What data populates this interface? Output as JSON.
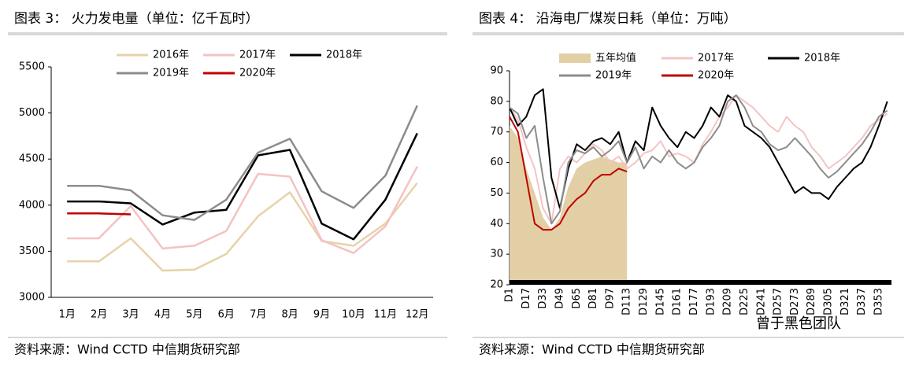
{
  "chart_data": [
    {
      "type": "line",
      "title": "图表 3：  火力发电量（单位：亿千瓦时）",
      "source": "资料来源：Wind CCTD 中信期货研究部",
      "categories": [
        "1月",
        "2月",
        "3月",
        "4月",
        "5月",
        "6月",
        "7月",
        "8月",
        "9月",
        "10月",
        "11月",
        "12月"
      ],
      "series": [
        {
          "name": "2016年",
          "color": "#e6d3a8",
          "values": [
            3390,
            3390,
            3640,
            3290,
            3300,
            3470,
            3880,
            4140,
            3610,
            3560,
            3800,
            4240
          ]
        },
        {
          "name": "2017年",
          "color": "#f4c2c2",
          "values": [
            3640,
            3640,
            3990,
            3530,
            3560,
            3720,
            4340,
            4310,
            3620,
            3480,
            3770,
            4420
          ]
        },
        {
          "name": "2018年",
          "color": "#000000",
          "values": [
            4040,
            4040,
            4020,
            3790,
            3920,
            3950,
            4540,
            4600,
            3800,
            3630,
            4060,
            4780
          ]
        },
        {
          "name": "2019年",
          "color": "#8c8c8c",
          "values": [
            4210,
            4210,
            4160,
            3890,
            3840,
            4060,
            4570,
            4720,
            4150,
            3970,
            4320,
            5080
          ]
        },
        {
          "name": "2020年",
          "color": "#c00000",
          "values": [
            3910,
            3910,
            3900,
            null,
            null,
            null,
            null,
            null,
            null,
            null,
            null,
            null
          ]
        }
      ],
      "ylim": [
        3000,
        5500
      ],
      "yticks": [
        3000,
        3500,
        4000,
        4500,
        5000,
        5500
      ]
    },
    {
      "type": "line",
      "title": "图表 4：  沿海电厂煤炭日耗（单位：万吨）",
      "source": "资料来源：Wind CCTD 中信期货研究部",
      "categories": [
        "D1",
        null,
        "D17",
        null,
        "D33",
        null,
        "D49",
        null,
        "D65",
        null,
        "D81",
        null,
        "D97",
        null,
        "D113",
        null,
        "D129",
        null,
        "D145",
        null,
        "D161",
        null,
        "D177",
        null,
        "D193",
        null,
        "D209",
        null,
        "D225",
        null,
        "D241",
        null,
        "D257",
        null,
        "D273",
        null,
        "D289",
        null,
        "D305",
        null,
        "D321",
        null,
        "D337",
        null,
        "D353",
        null
      ],
      "series": [
        {
          "name": "五年均值",
          "type": "area",
          "color": "#e3cfa5",
          "values": [
            72,
            68,
            58,
            50,
            42,
            38,
            42,
            52,
            58,
            60,
            61,
            62,
            61,
            60,
            60,
            null,
            null,
            null,
            null,
            null,
            null,
            null,
            null,
            null,
            null,
            null,
            null,
            null,
            null,
            null,
            null,
            null,
            null,
            null,
            null,
            null,
            null,
            null,
            null,
            null,
            null,
            null,
            null,
            null,
            null,
            null
          ]
        },
        {
          "name": "2017年",
          "color": "#f5c4c4",
          "values": [
            78,
            74,
            65,
            58,
            45,
            40,
            58,
            62,
            60,
            63,
            66,
            64,
            60,
            62,
            58,
            60,
            63,
            64,
            67,
            62,
            63,
            62,
            60,
            66,
            70,
            75,
            78,
            82,
            80,
            78,
            75,
            72,
            70,
            75,
            72,
            70,
            65,
            62,
            58,
            60,
            62,
            65,
            68,
            72,
            74,
            76
          ]
        },
        {
          "name": "2018年",
          "color": "#000000",
          "values": [
            78,
            72,
            75,
            82,
            84,
            55,
            45,
            58,
            66,
            64,
            67,
            68,
            66,
            70,
            60,
            67,
            64,
            78,
            72,
            68,
            65,
            70,
            68,
            72,
            78,
            75,
            82,
            80,
            72,
            70,
            68,
            65,
            60,
            55,
            50,
            52,
            50,
            50,
            48,
            52,
            55,
            58,
            60,
            65,
            72,
            80
          ]
        },
        {
          "name": "2019年",
          "color": "#8c8c8c",
          "values": [
            78,
            76,
            68,
            72,
            55,
            40,
            44,
            60,
            64,
            63,
            65,
            62,
            64,
            67,
            60,
            65,
            58,
            62,
            60,
            64,
            60,
            58,
            60,
            65,
            68,
            72,
            80,
            82,
            78,
            72,
            70,
            66,
            64,
            65,
            68,
            65,
            62,
            58,
            55,
            57,
            60,
            63,
            66,
            70,
            75,
            77
          ]
        },
        {
          "name": "2020年",
          "color": "#c00000",
          "values": [
            75,
            70,
            55,
            40,
            38,
            38,
            40,
            45,
            48,
            50,
            54,
            56,
            56,
            58,
            57,
            null,
            null,
            null,
            null,
            null,
            null,
            null,
            null,
            null,
            null,
            null,
            null,
            null,
            null,
            null,
            null,
            null,
            null,
            null,
            null,
            null,
            null,
            null,
            null,
            null,
            null,
            null,
            null,
            null,
            null,
            null
          ]
        }
      ],
      "ylim": [
        20,
        90
      ],
      "yticks": [
        20,
        30,
        40,
        50,
        60,
        70,
        80,
        90
      ]
    }
  ],
  "watermark": "曾于黑色团队"
}
